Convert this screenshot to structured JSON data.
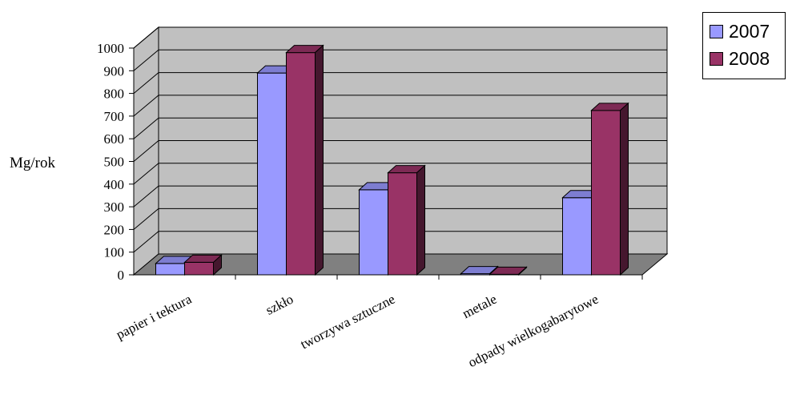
{
  "chart_data": {
    "type": "bar",
    "ylabel": "Mg/rok",
    "ylim": [
      0,
      1000
    ],
    "yticks": [
      "0",
      "100",
      "200",
      "300",
      "400",
      "500",
      "600",
      "700",
      "800",
      "900",
      "1000"
    ],
    "categories": [
      "papier i tektura",
      "szkło",
      "tworzywa sztuczne",
      "metale",
      "odpady wielkogabarytowe"
    ],
    "series": [
      {
        "name": "2007",
        "color": "#9999ff",
        "values": [
          50,
          890,
          375,
          5,
          340
        ]
      },
      {
        "name": "2008",
        "color": "#993366",
        "values": [
          55,
          980,
          450,
          2,
          725
        ]
      }
    ],
    "grid": true,
    "legend": "top-right",
    "style": "3d-clustered-column",
    "wall_color": "#c0c0c0",
    "floor_color": "#808080"
  }
}
